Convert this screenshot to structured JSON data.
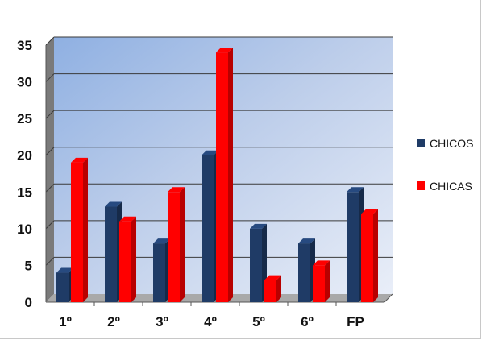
{
  "chart_data": {
    "type": "bar",
    "categories": [
      "1º",
      "2º",
      "3º",
      "4º",
      "5º",
      "6º",
      "FP"
    ],
    "series": [
      {
        "name": "CHICOS",
        "values": [
          4,
          13,
          8,
          20,
          10,
          8,
          15
        ],
        "color": "#1f3b66"
      },
      {
        "name": "CHICAS",
        "values": [
          19,
          11,
          15,
          34,
          3,
          5,
          12
        ],
        "color": "#ff0000"
      }
    ],
    "ylim": [
      0,
      35
    ],
    "yticks": [
      "0",
      "5",
      "10",
      "15",
      "20",
      "25",
      "30",
      "35"
    ],
    "grid": true,
    "legend": "right",
    "plot_background": "#c3d3ec"
  }
}
